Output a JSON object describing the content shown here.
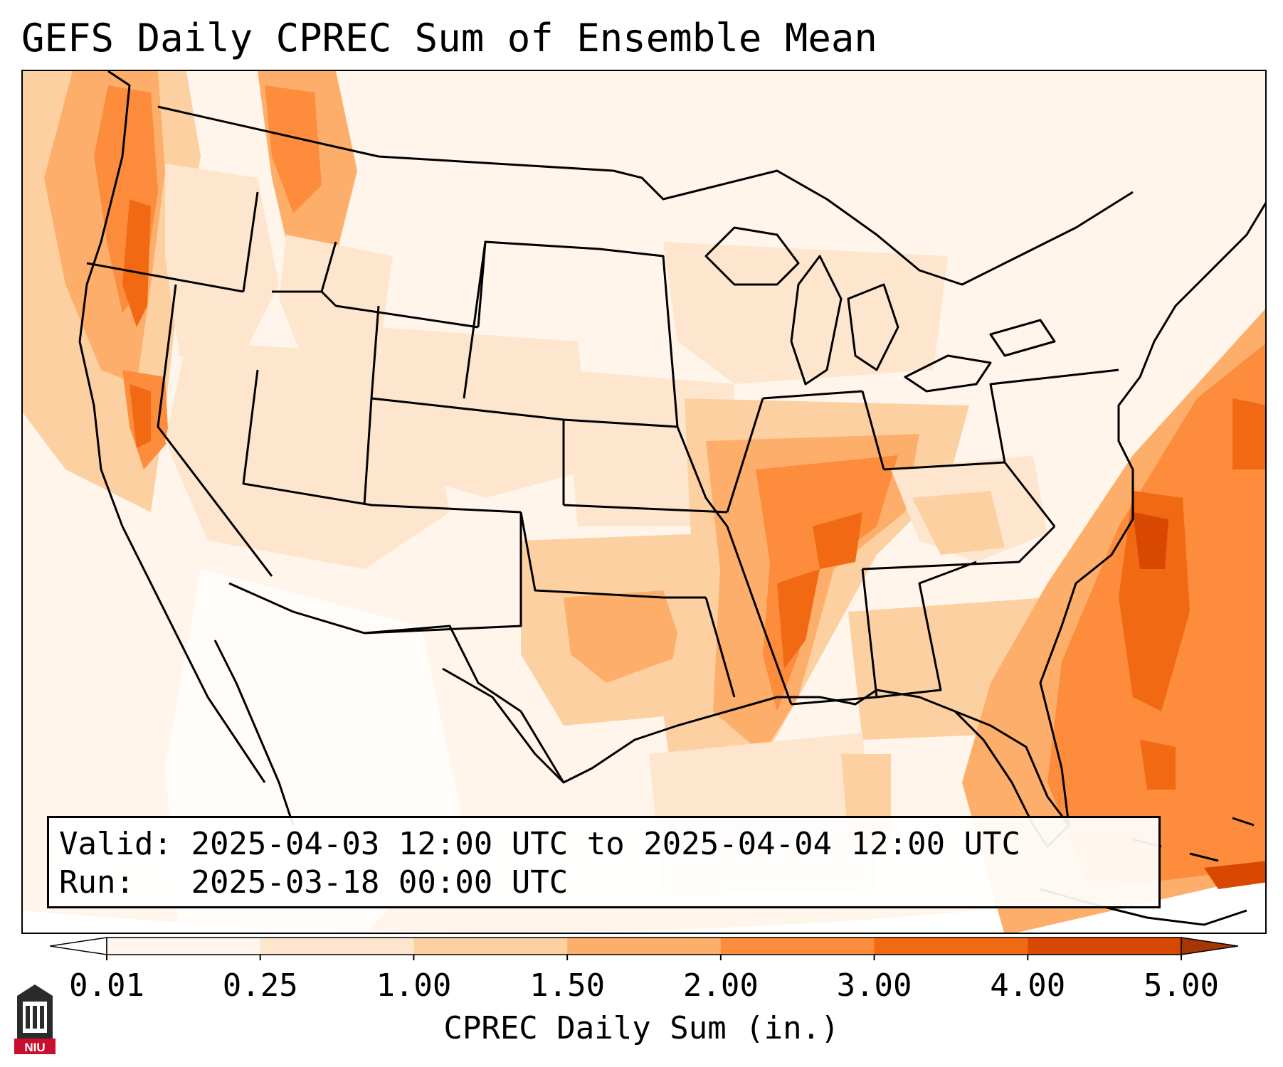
{
  "title": "GEFS Daily CPREC Sum of Ensemble Mean",
  "info": {
    "valid_label": "Valid:",
    "valid_value": "2025-04-03 12:00 UTC to 2025-04-04 12:00 UTC",
    "run_label": "Run:",
    "run_value": "2025-03-18 00:00 UTC"
  },
  "colorbar": {
    "label": "CPREC Daily Sum (in.)",
    "ticks": [
      "0.01",
      "0.25",
      "1.00",
      "1.50",
      "2.00",
      "3.00",
      "4.00",
      "5.00"
    ],
    "colors": [
      "#ffffff",
      "#fff5eb",
      "#fee6ce",
      "#fdd0a2",
      "#fdae6b",
      "#fd8d3c",
      "#f16913",
      "#d94801",
      "#a63603"
    ],
    "extend": "both"
  },
  "logo": {
    "text": "NIU",
    "color": "#c8102e"
  },
  "colors": {
    "very_light": "#fff5eb",
    "light": "#fee6ce",
    "light_medium": "#fdd0a2",
    "medium": "#fdae6b",
    "medium_dark": "#fd8d3c",
    "dark": "#f16913",
    "very_dark": "#d94801"
  }
}
